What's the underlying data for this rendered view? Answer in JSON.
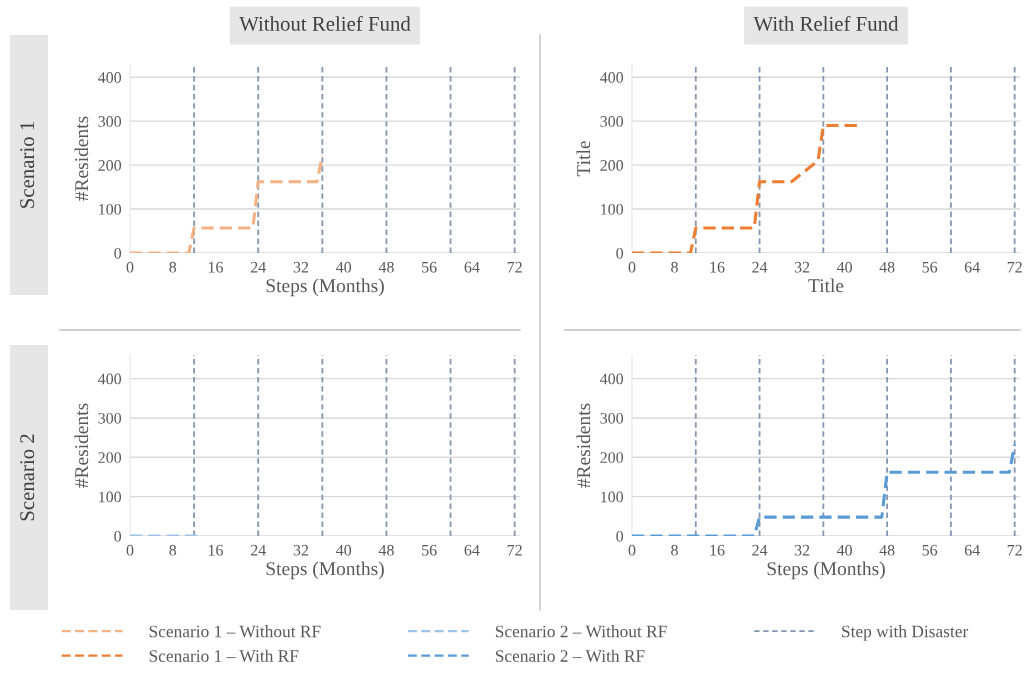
{
  "chart_data": [
    {
      "type": "line",
      "title": "Without Relief Fund",
      "xlabel": "Steps (Months)",
      "ylabel": "#Residents",
      "annotations": [
        "Scenario 1"
      ],
      "series": [
        {
          "name": "Scenario 1 – Without RF",
          "color": "#f4b183",
          "x": [
            0,
            11,
            12,
            23,
            24,
            35,
            36
          ],
          "values": [
            0,
            0,
            57,
            57,
            162,
            162,
            222
          ]
        }
      ],
      "xlim": [
        0,
        73
      ],
      "xticks": [
        0,
        8,
        16,
        24,
        32,
        40,
        48,
        56,
        64,
        72
      ],
      "ylim": [
        0,
        430
      ],
      "yticks": [
        0,
        100,
        200,
        300,
        400
      ],
      "grid": "y",
      "legend": "bottom",
      "line_style": "dashed",
      "ref_lines": [
        {
          "axis": "x",
          "value": 12,
          "label": "Step with Disaster",
          "color": "#8497b0",
          "line_style": "dashed"
        },
        {
          "axis": "x",
          "value": 24,
          "color": "#8497b0",
          "line_style": "dashed"
        },
        {
          "axis": "x",
          "value": 36,
          "color": "#8497b0",
          "line_style": "dashed"
        },
        {
          "axis": "x",
          "value": 48,
          "color": "#8497b0",
          "line_style": "dashed"
        },
        {
          "axis": "x",
          "value": 60,
          "color": "#8497b0",
          "line_style": "dashed"
        },
        {
          "axis": "x",
          "value": 72,
          "color": "#8497b0",
          "line_style": "dashed"
        }
      ]
    },
    {
      "type": "line",
      "title": "With Relief Fund",
      "xlabel": "Title",
      "ylabel": "Title",
      "series": [
        {
          "name": "Scenario 1 – With RF",
          "color": "#ed7d31",
          "x": [
            0,
            11,
            12,
            23,
            24,
            30,
            35,
            36,
            43
          ],
          "values": [
            0,
            0,
            57,
            57,
            162,
            162,
            210,
            290,
            290
          ]
        }
      ],
      "xlim": [
        0,
        73
      ],
      "xticks": [
        0,
        8,
        16,
        24,
        32,
        40,
        48,
        56,
        64,
        72
      ],
      "ylim": [
        0,
        430
      ],
      "yticks": [
        0,
        100,
        200,
        300,
        400
      ],
      "grid": "y",
      "legend": "bottom",
      "line_style": "dashed",
      "ref_lines": [
        {
          "axis": "x",
          "value": 12,
          "color": "#8497b0",
          "line_style": "dashed"
        },
        {
          "axis": "x",
          "value": 24,
          "color": "#8497b0",
          "line_style": "dashed"
        },
        {
          "axis": "x",
          "value": 36,
          "color": "#8497b0",
          "line_style": "dashed"
        },
        {
          "axis": "x",
          "value": 48,
          "color": "#8497b0",
          "line_style": "dashed"
        },
        {
          "axis": "x",
          "value": 60,
          "color": "#8497b0",
          "line_style": "dashed"
        },
        {
          "axis": "x",
          "value": 72,
          "color": "#8497b0",
          "line_style": "dashed"
        }
      ]
    },
    {
      "type": "line",
      "xlabel": "Steps (Months)",
      "ylabel": "#Residents",
      "annotations": [
        "Scenario 2"
      ],
      "series": [
        {
          "name": "Scenario 2 – Without RF",
          "color": "#9dc3e6",
          "x": [
            0,
            13
          ],
          "values": [
            0,
            0
          ]
        }
      ],
      "xlim": [
        0,
        73
      ],
      "xticks": [
        0,
        8,
        16,
        24,
        32,
        40,
        48,
        56,
        64,
        72
      ],
      "ylim": [
        0,
        460
      ],
      "yticks": [
        0,
        100,
        200,
        300,
        400
      ],
      "grid": "y",
      "legend": "bottom",
      "line_style": "dashed",
      "ref_lines": [
        {
          "axis": "x",
          "value": 12,
          "color": "#8497b0",
          "line_style": "dashed"
        },
        {
          "axis": "x",
          "value": 24,
          "color": "#8497b0",
          "line_style": "dashed"
        },
        {
          "axis": "x",
          "value": 36,
          "color": "#8497b0",
          "line_style": "dashed"
        },
        {
          "axis": "x",
          "value": 48,
          "color": "#8497b0",
          "line_style": "dashed"
        },
        {
          "axis": "x",
          "value": 60,
          "color": "#8497b0",
          "line_style": "dashed"
        },
        {
          "axis": "x",
          "value": 72,
          "color": "#8497b0",
          "line_style": "dashed"
        }
      ]
    },
    {
      "type": "line",
      "xlabel": "Steps (Months)",
      "ylabel": "#Residents",
      "series": [
        {
          "name": "Scenario 2 – With RF",
          "color": "#5b9bd5",
          "x": [
            0,
            23,
            24,
            47,
            48,
            71,
            72
          ],
          "values": [
            0,
            0,
            48,
            48,
            162,
            162,
            232
          ]
        }
      ],
      "xlim": [
        0,
        73
      ],
      "xticks": [
        0,
        8,
        16,
        24,
        32,
        40,
        48,
        56,
        64,
        72
      ],
      "ylim": [
        0,
        460
      ],
      "yticks": [
        0,
        100,
        200,
        300,
        400
      ],
      "grid": "y",
      "legend": "bottom",
      "line_style": "dashed",
      "ref_lines": [
        {
          "axis": "x",
          "value": 12,
          "color": "#8497b0",
          "line_style": "dashed"
        },
        {
          "axis": "x",
          "value": 24,
          "color": "#8497b0",
          "line_style": "dashed"
        },
        {
          "axis": "x",
          "value": 36,
          "color": "#8497b0",
          "line_style": "dashed"
        },
        {
          "axis": "x",
          "value": 48,
          "color": "#8497b0",
          "line_style": "dashed"
        },
        {
          "axis": "x",
          "value": 60,
          "color": "#8497b0",
          "line_style": "dashed"
        },
        {
          "axis": "x",
          "value": 72,
          "color": "#8497b0",
          "line_style": "dashed"
        }
      ]
    }
  ]
}
